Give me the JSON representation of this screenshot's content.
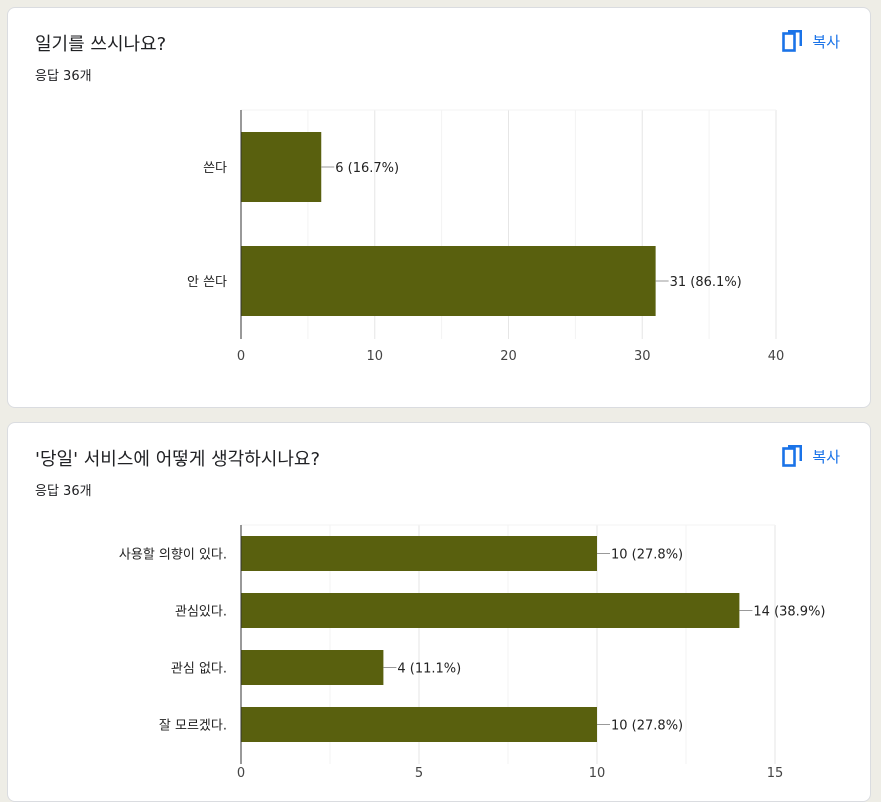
{
  "copy_label": "복사",
  "colors": {
    "bar": "#59600e",
    "accent": "#1a73e8"
  },
  "icons": {
    "copy": "copy-icon"
  },
  "questions": [
    {
      "title": "일기를 쓰시나요?",
      "responses": "응답 36개"
    },
    {
      "title": "'당일' 서비스에 어떻게 생각하시나요?",
      "responses": "응답 36개"
    }
  ],
  "chart_data": [
    {
      "type": "bar",
      "orientation": "horizontal",
      "categories": [
        "쓴다",
        "안 쓴다"
      ],
      "values": [
        6,
        31
      ],
      "labels": [
        "6 (16.7%)",
        "31 (86.1%)"
      ],
      "xlim": [
        0,
        40
      ],
      "ticks": [
        "0",
        "10",
        "20",
        "30",
        "40"
      ],
      "grid": true
    },
    {
      "type": "bar",
      "orientation": "horizontal",
      "categories": [
        "사용할 의향이 있다.",
        "관심있다.",
        "관심 없다.",
        "잘 모르겠다."
      ],
      "values": [
        10,
        14,
        4,
        10
      ],
      "labels": [
        "10 (27.8%)",
        "14 (38.9%)",
        "4 (11.1%)",
        "10 (27.8%)"
      ],
      "xlim": [
        0,
        15
      ],
      "ticks": [
        "0",
        "5",
        "10",
        "15"
      ],
      "grid": true
    }
  ]
}
